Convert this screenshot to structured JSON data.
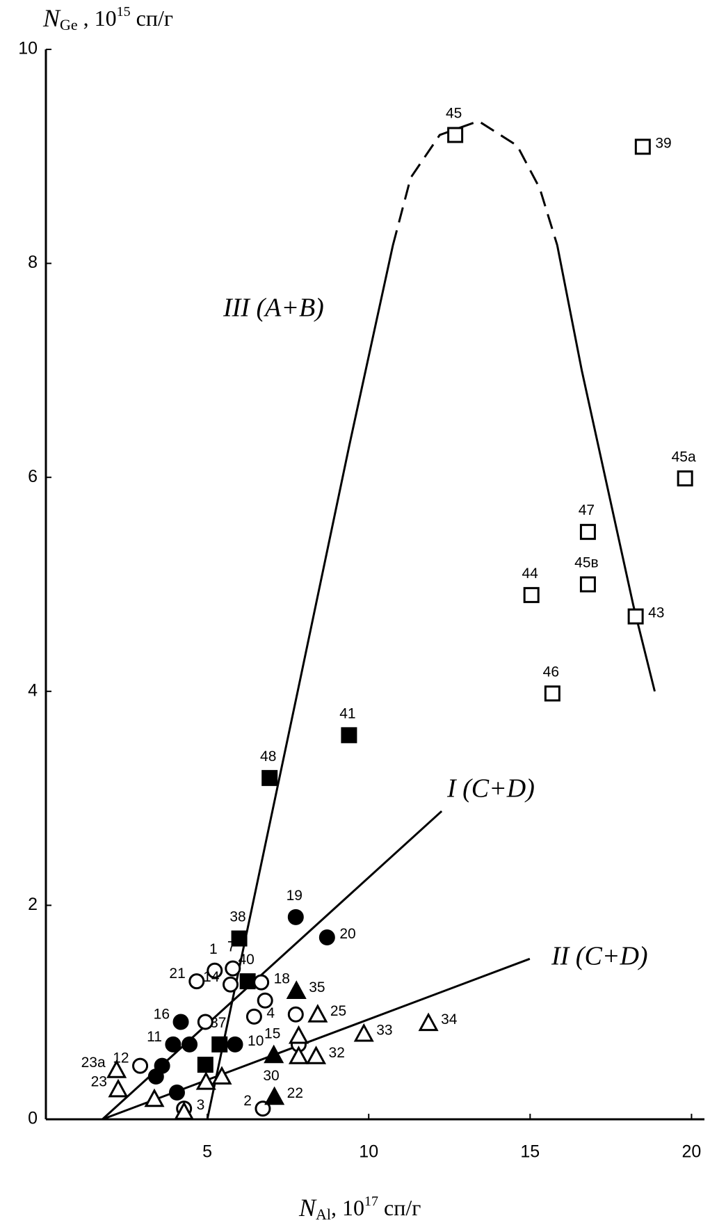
{
  "chart_data": {
    "type": "scatter",
    "x_label": {
      "symbol": "N",
      "subscript": "Al",
      "unit_base": ", 10",
      "unit_exp": "17",
      "unit": " сп/г"
    },
    "y_label": {
      "symbol": "N",
      "subscript": "Ge",
      "unit_base": " , 10",
      "unit_exp": "15",
      "unit": " сп/г"
    },
    "xlim": [
      0,
      20.4
    ],
    "ylim": [
      0,
      10
    ],
    "xticks": [
      5,
      10,
      15,
      20
    ],
    "yticks": [
      0,
      2,
      4,
      6,
      8,
      10
    ],
    "color": "#000000",
    "series": [
      {
        "marker": "square",
        "filled": false,
        "labels": [
          "45",
          "39",
          "45а",
          "47",
          "45в",
          "44",
          "43",
          "46"
        ],
        "x": [
          12.68,
          18.49,
          19.8,
          16.79,
          16.79,
          15.04,
          18.27,
          15.69
        ],
        "y": [
          9.2,
          9.09,
          5.99,
          5.49,
          5.0,
          4.9,
          4.7,
          3.98
        ]
      },
      {
        "marker": "square",
        "filled": true,
        "labels": [
          "41",
          "48",
          "38",
          "40",
          "37",
          null
        ],
        "x": [
          9.39,
          6.93,
          5.99,
          6.25,
          5.38,
          4.94
        ],
        "y": [
          3.59,
          3.19,
          1.69,
          1.29,
          0.7,
          0.51
        ]
      },
      {
        "marker": "circle",
        "filled": true,
        "labels": [
          "19",
          "20",
          "16",
          "11",
          null,
          null,
          null,
          null,
          "10"
        ],
        "x": [
          7.74,
          8.71,
          4.18,
          3.94,
          4.45,
          3.6,
          3.41,
          4.06,
          5.86
        ],
        "y": [
          1.89,
          1.7,
          0.91,
          0.7,
          0.7,
          0.5,
          0.4,
          0.25,
          0.7
        ]
      },
      {
        "marker": "circle",
        "filled": false,
        "labels": [
          "1",
          "7",
          "21",
          "14",
          "18",
          null,
          "4",
          null,
          null,
          "12",
          null,
          "2",
          "3"
        ],
        "x": [
          5.23,
          5.79,
          4.67,
          5.72,
          6.67,
          6.79,
          6.45,
          7.74,
          4.94,
          2.92,
          7.83,
          6.72,
          4.28
        ],
        "y": [
          1.39,
          1.41,
          1.29,
          1.26,
          1.28,
          1.11,
          0.96,
          0.98,
          0.91,
          0.5,
          0.7,
          0.1,
          0.1
        ]
      },
      {
        "marker": "triangle",
        "filled": false,
        "labels": [
          "25",
          "23а",
          "23",
          null,
          "33",
          "34",
          "32",
          null,
          null,
          null,
          null,
          null
        ],
        "x": [
          8.42,
          2.19,
          2.24,
          3.36,
          9.85,
          11.85,
          8.37,
          7.83,
          7.83,
          4.96,
          5.45,
          4.28
        ],
        "y": [
          0.98,
          0.46,
          0.28,
          0.19,
          0.8,
          0.9,
          0.59,
          0.59,
          0.78,
          0.35,
          0.4,
          0.07
        ]
      },
      {
        "marker": "triangle",
        "filled": true,
        "labels": [
          "35",
          "15",
          "22"
        ],
        "x": [
          7.76,
          7.06,
          7.08
        ],
        "y": [
          1.2,
          0.6,
          0.21
        ]
      }
    ],
    "annotations": [
      {
        "text": "30",
        "x": 6.98,
        "y": 0.4
      }
    ],
    "curves": [
      {
        "name": "III  (A+B)",
        "dashed": false,
        "x": [
          5.0,
          6.4,
          7.8,
          9.4,
          10.75
        ],
        "y": [
          0,
          2,
          4,
          6.3,
          8.17
        ]
      },
      {
        "dashed": true,
        "x": [
          10.75,
          11.3,
          12.2,
          13.4,
          14.6,
          15.3,
          15.84
        ],
        "y": [
          8.17,
          8.8,
          9.2,
          9.33,
          9.1,
          8.7,
          8.17
        ]
      },
      {
        "dashed": false,
        "x": [
          15.84,
          16.6,
          17.4,
          18.2,
          18.86
        ],
        "y": [
          8.17,
          7.0,
          5.9,
          4.8,
          4.0
        ]
      },
      {
        "name": "I  (C+D)",
        "dashed": false,
        "x": [
          1.75,
          12.26
        ],
        "y": [
          0,
          2.88
        ]
      },
      {
        "name": "II  (C+D)",
        "dashed": false,
        "x": [
          1.75,
          14.99
        ],
        "y": [
          0,
          1.5
        ]
      }
    ]
  }
}
